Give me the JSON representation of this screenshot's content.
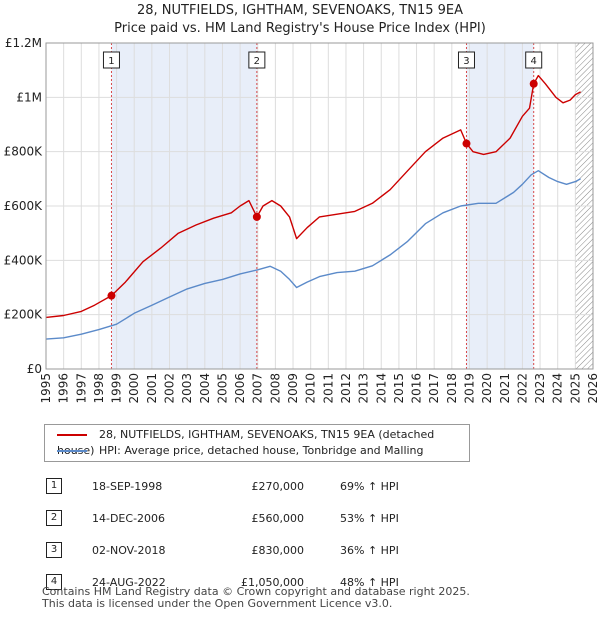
{
  "header": {
    "title_line1": "28, NUTFIELDS, IGHTHAM, SEVENOAKS, TN15 9EA",
    "title_line2": "Price paid vs. HM Land Registry's House Price Index (HPI)"
  },
  "chart_data": {
    "type": "line",
    "title": "28, NUTFIELDS, IGHTHAM, SEVENOAKS, TN15 9EA — Price paid vs. HM Land Registry's House Price Index (HPI)",
    "xlim": [
      1995.0,
      2026.0
    ],
    "ylim": [
      0,
      1200000
    ],
    "ytick_values": [
      0,
      200000,
      400000,
      600000,
      800000,
      1000000,
      1200000
    ],
    "ytick_labels": [
      "£0",
      "£200K",
      "£400K",
      "£600K",
      "£800K",
      "£1M",
      "£1.2M"
    ],
    "xtick_labels": [
      "1995",
      "1996",
      "1997",
      "1998",
      "1999",
      "2000",
      "2001",
      "2002",
      "2003",
      "2004",
      "2005",
      "2006",
      "2007",
      "2008",
      "2009",
      "2010",
      "2011",
      "2012",
      "2013",
      "2014",
      "2015",
      "2016",
      "2017",
      "2018",
      "2019",
      "2020",
      "2021",
      "2022",
      "2023",
      "2024",
      "2025",
      "2026"
    ],
    "grid": true,
    "colors": {
      "red": "#cc0000",
      "blue": "#5b8ac9",
      "shade": "#e8eef9",
      "hatch": "#888888"
    },
    "legend_labels": {
      "red": "28, NUTFIELDS, IGHTHAM, SEVENOAKS, TN15 9EA (detached house)",
      "blue": "HPI: Average price, detached house, Tonbridge and Malling"
    },
    "series": [
      {
        "name": "28, NUTFIELDS, IGHTHAM, SEVENOAKS, TN15 9EA (detached house)",
        "color": "#cc0000",
        "x": [
          1995.0,
          1996.0,
          1997.0,
          1997.75,
          1998.71,
          1999.5,
          2000.5,
          2001.5,
          2002.5,
          2003.5,
          2004.5,
          2005.5,
          2006.0,
          2006.5,
          2006.95,
          2007.3,
          2007.8,
          2008.3,
          2008.8,
          2009.2,
          2009.8,
          2010.5,
          2011.5,
          2012.5,
          2013.5,
          2014.5,
          2015.5,
          2016.5,
          2017.5,
          2018.5,
          2018.83,
          2019.2,
          2019.8,
          2020.5,
          2021.3,
          2022.0,
          2022.4,
          2022.64,
          2022.9,
          2023.3,
          2023.9,
          2024.3,
          2024.7,
          2025.0,
          2025.3
        ],
        "y": [
          190000,
          197000,
          212000,
          235000,
          270000,
          320000,
          395000,
          445000,
          500000,
          530000,
          555000,
          575000,
          600000,
          620000,
          560000,
          600000,
          620000,
          600000,
          560000,
          480000,
          520000,
          560000,
          570000,
          580000,
          610000,
          660000,
          730000,
          800000,
          850000,
          880000,
          830000,
          800000,
          790000,
          800000,
          850000,
          930000,
          960000,
          1050000,
          1080000,
          1050000,
          1000000,
          980000,
          990000,
          1010000,
          1020000
        ]
      },
      {
        "name": "HPI: Average price, detached house, Tonbridge and Malling",
        "color": "#5b8ac9",
        "x": [
          1995.0,
          1996.0,
          1997.0,
          1998.0,
          1999.0,
          2000.0,
          2001.0,
          2002.0,
          2003.0,
          2004.0,
          2005.0,
          2006.0,
          2007.0,
          2007.7,
          2008.3,
          2008.8,
          2009.2,
          2009.8,
          2010.5,
          2011.5,
          2012.5,
          2013.5,
          2014.5,
          2015.5,
          2016.5,
          2017.5,
          2018.5,
          2019.5,
          2020.5,
          2021.5,
          2022.0,
          2022.5,
          2022.9,
          2023.5,
          2024.0,
          2024.5,
          2025.0,
          2025.3
        ],
        "y": [
          110000,
          115000,
          128000,
          145000,
          165000,
          205000,
          235000,
          265000,
          295000,
          315000,
          330000,
          350000,
          365000,
          378000,
          360000,
          330000,
          300000,
          320000,
          340000,
          355000,
          360000,
          380000,
          420000,
          470000,
          535000,
          575000,
          600000,
          610000,
          610000,
          650000,
          680000,
          715000,
          730000,
          705000,
          690000,
          680000,
          690000,
          700000
        ]
      }
    ],
    "sales": [
      {
        "marker": "1",
        "x": 1998.71,
        "y": 270000
      },
      {
        "marker": "2",
        "x": 2006.95,
        "y": 560000
      },
      {
        "marker": "3",
        "x": 2018.83,
        "y": 830000
      },
      {
        "marker": "4",
        "x": 2022.64,
        "y": 1050000
      }
    ],
    "shaded_ranges": [
      [
        1998.71,
        2006.95
      ],
      [
        2018.83,
        2022.64
      ]
    ],
    "hatched_range": [
      2025.0,
      2026.0
    ]
  },
  "legend": {
    "red_label": "28, NUTFIELDS, IGHTHAM, SEVENOAKS, TN15 9EA (detached house)",
    "blue_label": "HPI: Average price, detached house, Tonbridge and Malling"
  },
  "sales_table": {
    "rows": [
      {
        "num": "1",
        "date": "18-SEP-1998",
        "price": "£270,000",
        "hpi": "69% ↑ HPI"
      },
      {
        "num": "2",
        "date": "14-DEC-2006",
        "price": "£560,000",
        "hpi": "53% ↑ HPI"
      },
      {
        "num": "3",
        "date": "02-NOV-2018",
        "price": "£830,000",
        "hpi": "36% ↑ HPI"
      },
      {
        "num": "4",
        "date": "24-AUG-2022",
        "price": "£1,050,000",
        "hpi": "48% ↑ HPI"
      }
    ]
  },
  "footer": {
    "line1": "Contains HM Land Registry data © Crown copyright and database right 2025.",
    "line2": "This data is licensed under the Open Government Licence v3.0."
  }
}
